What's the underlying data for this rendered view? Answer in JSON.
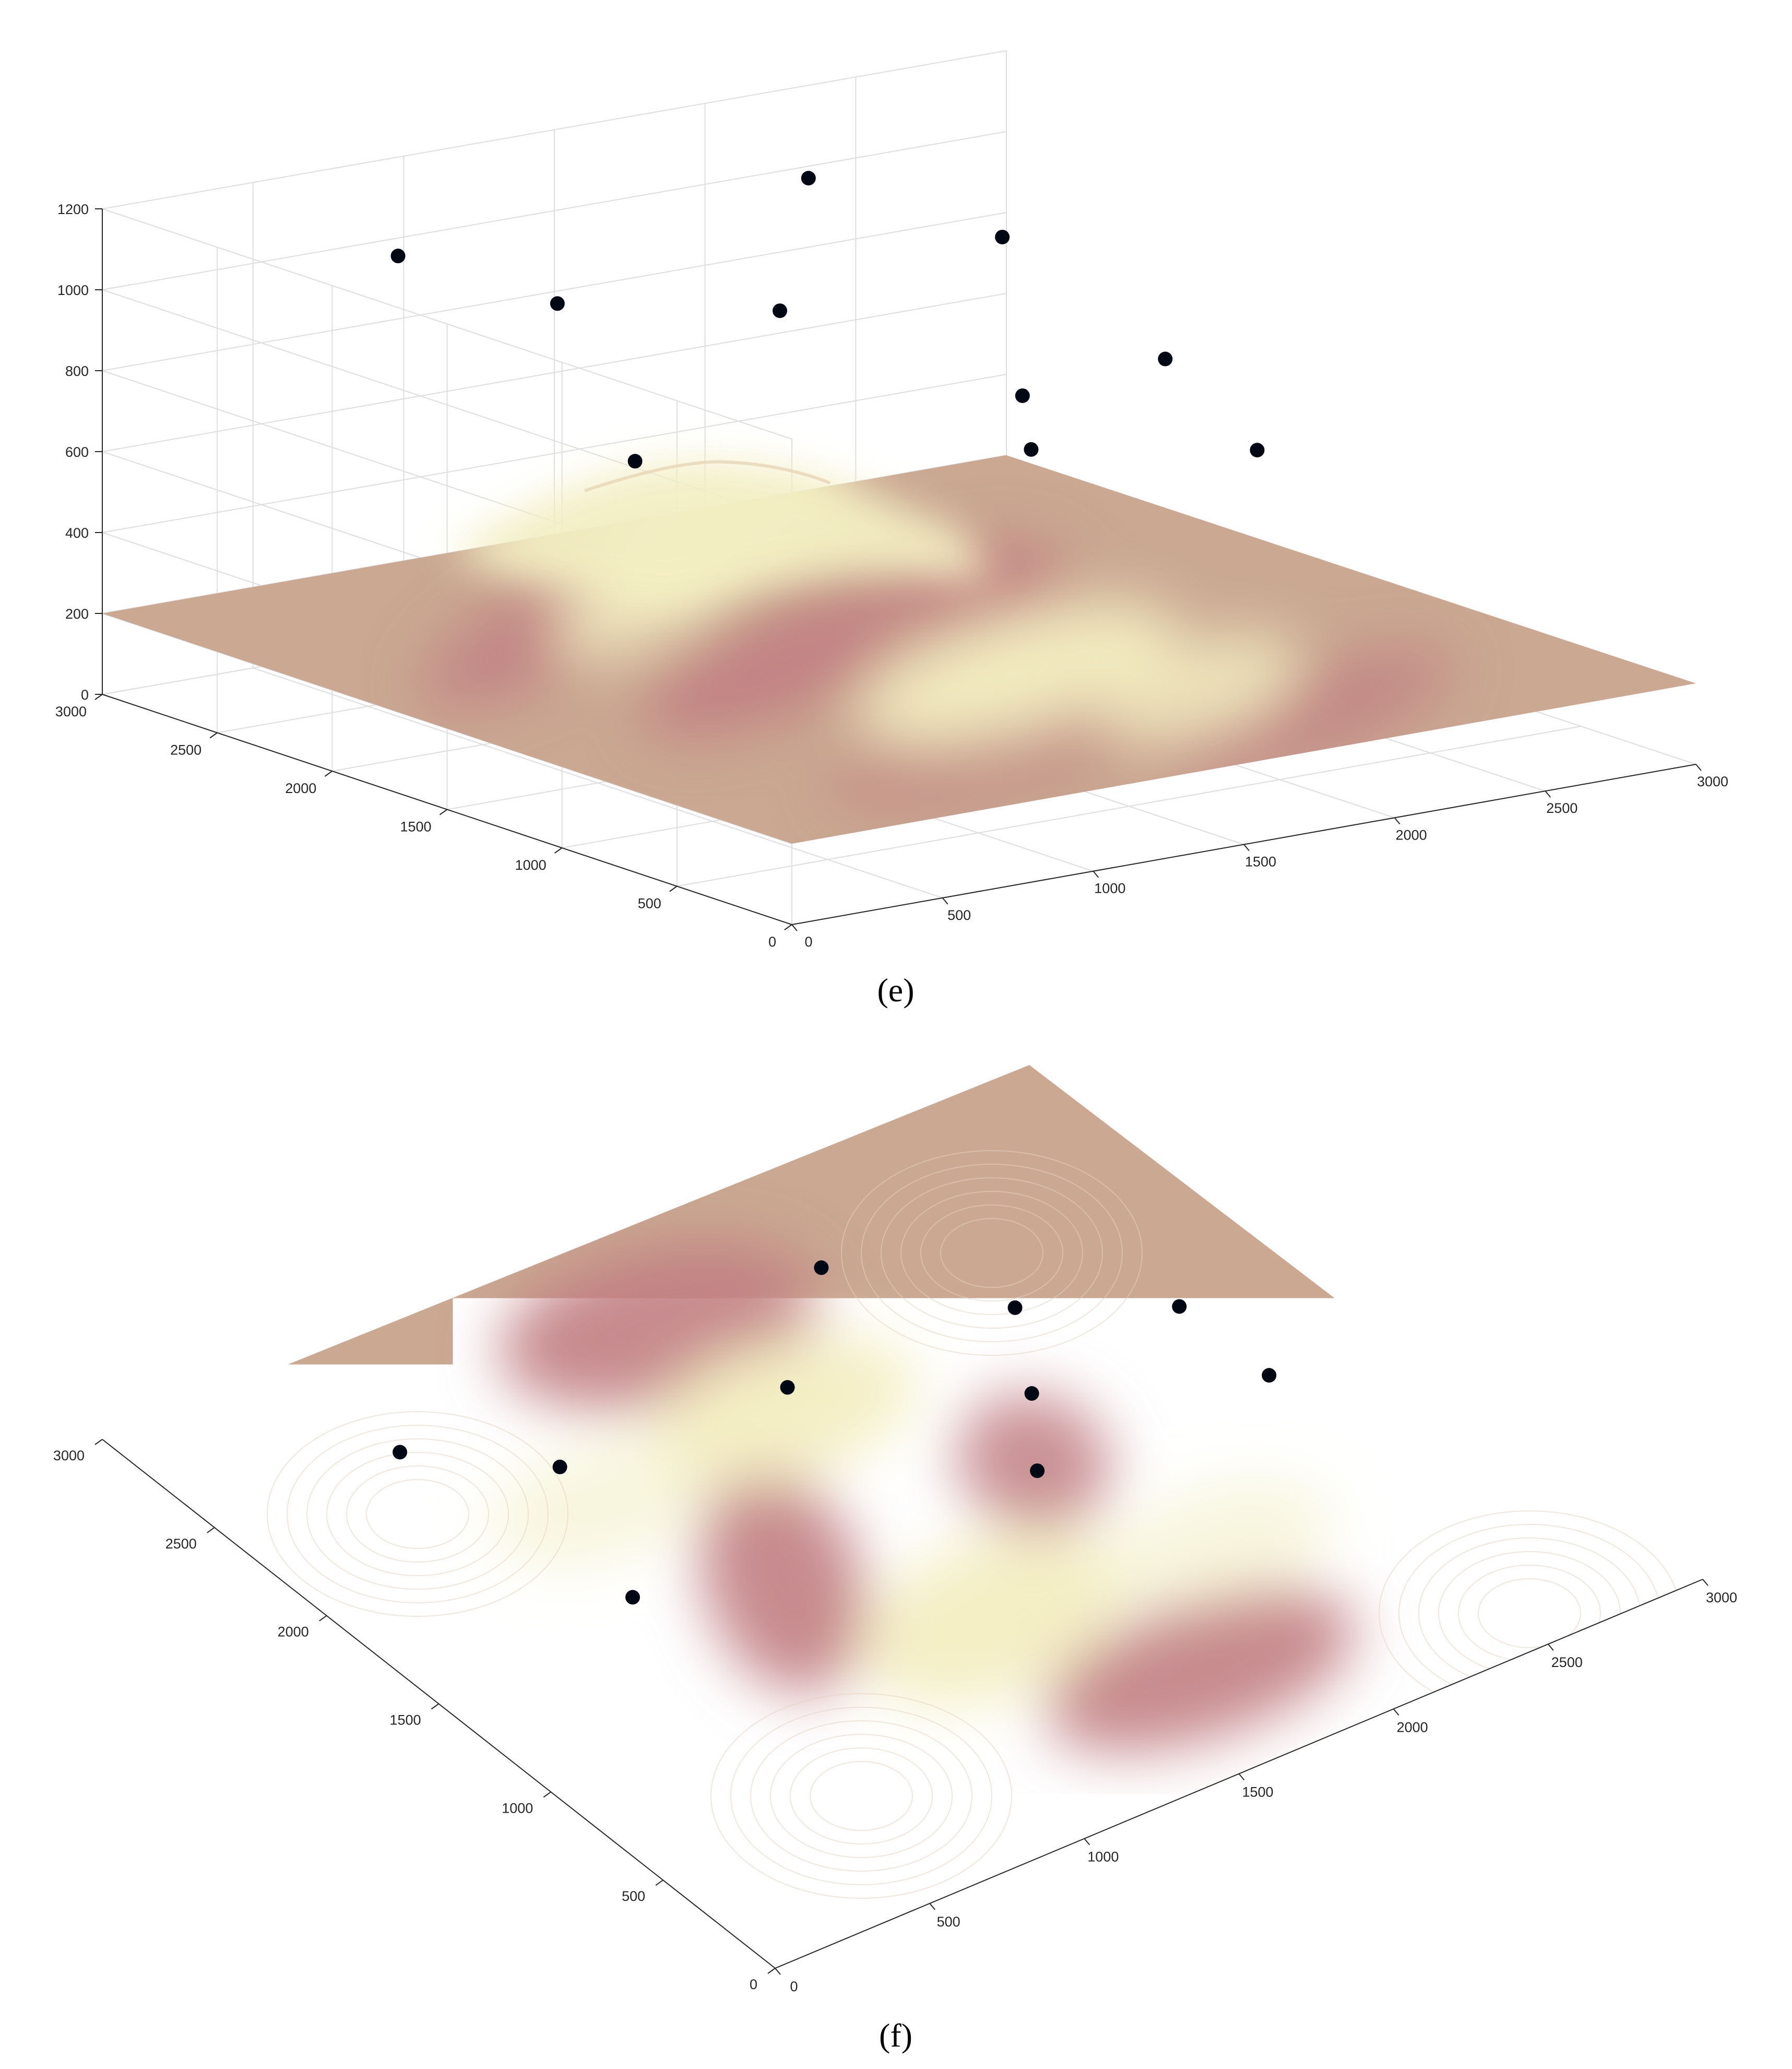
{
  "chart_data": [
    {
      "type": "surface3d",
      "panel_label": "(e)",
      "view": "3d",
      "grid": true,
      "xlim": [
        0,
        3000
      ],
      "ylim": [
        0,
        3000
      ],
      "zlim": [
        0,
        1200
      ],
      "x_ticks": [
        "0",
        "500",
        "1000",
        "1500",
        "2000",
        "2500",
        "3000"
      ],
      "y_ticks": [
        "0",
        "500",
        "1000",
        "1500",
        "2000",
        "2500",
        "3000"
      ],
      "z_ticks": [
        "0",
        "200",
        "400",
        "600",
        "800",
        "1000",
        "1200"
      ],
      "surface_base_z": 200,
      "colors": {
        "base": "#caa892",
        "peak": "#f3eec2",
        "valley": "#c17e82",
        "marker": "#000814"
      },
      "points": [
        {
          "x": 600,
          "y": 2500,
          "z": 1100
        },
        {
          "x": 900,
          "y": 2200,
          "z": 1000
        },
        {
          "x": 700,
          "y": 1600,
          "z": 750
        },
        {
          "x": 1600,
          "y": 2150,
          "z": 900
        },
        {
          "x": 2000,
          "y": 2550,
          "z": 1100
        },
        {
          "x": 2300,
          "y": 2100,
          "z": 1000
        },
        {
          "x": 1900,
          "y": 1450,
          "z": 650
        },
        {
          "x": 2100,
          "y": 1750,
          "z": 700
        },
        {
          "x": 2650,
          "y": 1850,
          "z": 700
        },
        {
          "x": 2650,
          "y": 1450,
          "z": 550
        }
      ]
    },
    {
      "type": "surface_top_view",
      "panel_label": "(f)",
      "view": "top",
      "xlim": [
        0,
        3000
      ],
      "ylim": [
        0,
        3000
      ],
      "x_ticks": [
        "0",
        "500",
        "1000",
        "1500",
        "2000",
        "2500",
        "3000"
      ],
      "y_ticks": [
        "0",
        "500",
        "1000",
        "1500",
        "2000",
        "2500",
        "3000"
      ],
      "colors": {
        "base": "#caa892",
        "peak": "#f3eec2",
        "valley": "#c17e82",
        "marker": "#000814"
      },
      "points": [
        {
          "x": 600,
          "y": 2500
        },
        {
          "x": 900,
          "y": 2200
        },
        {
          "x": 700,
          "y": 1600
        },
        {
          "x": 1600,
          "y": 2150
        },
        {
          "x": 2000,
          "y": 2550
        },
        {
          "x": 2300,
          "y": 2100
        },
        {
          "x": 1900,
          "y": 1450
        },
        {
          "x": 2100,
          "y": 1750
        },
        {
          "x": 2650,
          "y": 1850
        },
        {
          "x": 2650,
          "y": 1450
        }
      ]
    }
  ]
}
